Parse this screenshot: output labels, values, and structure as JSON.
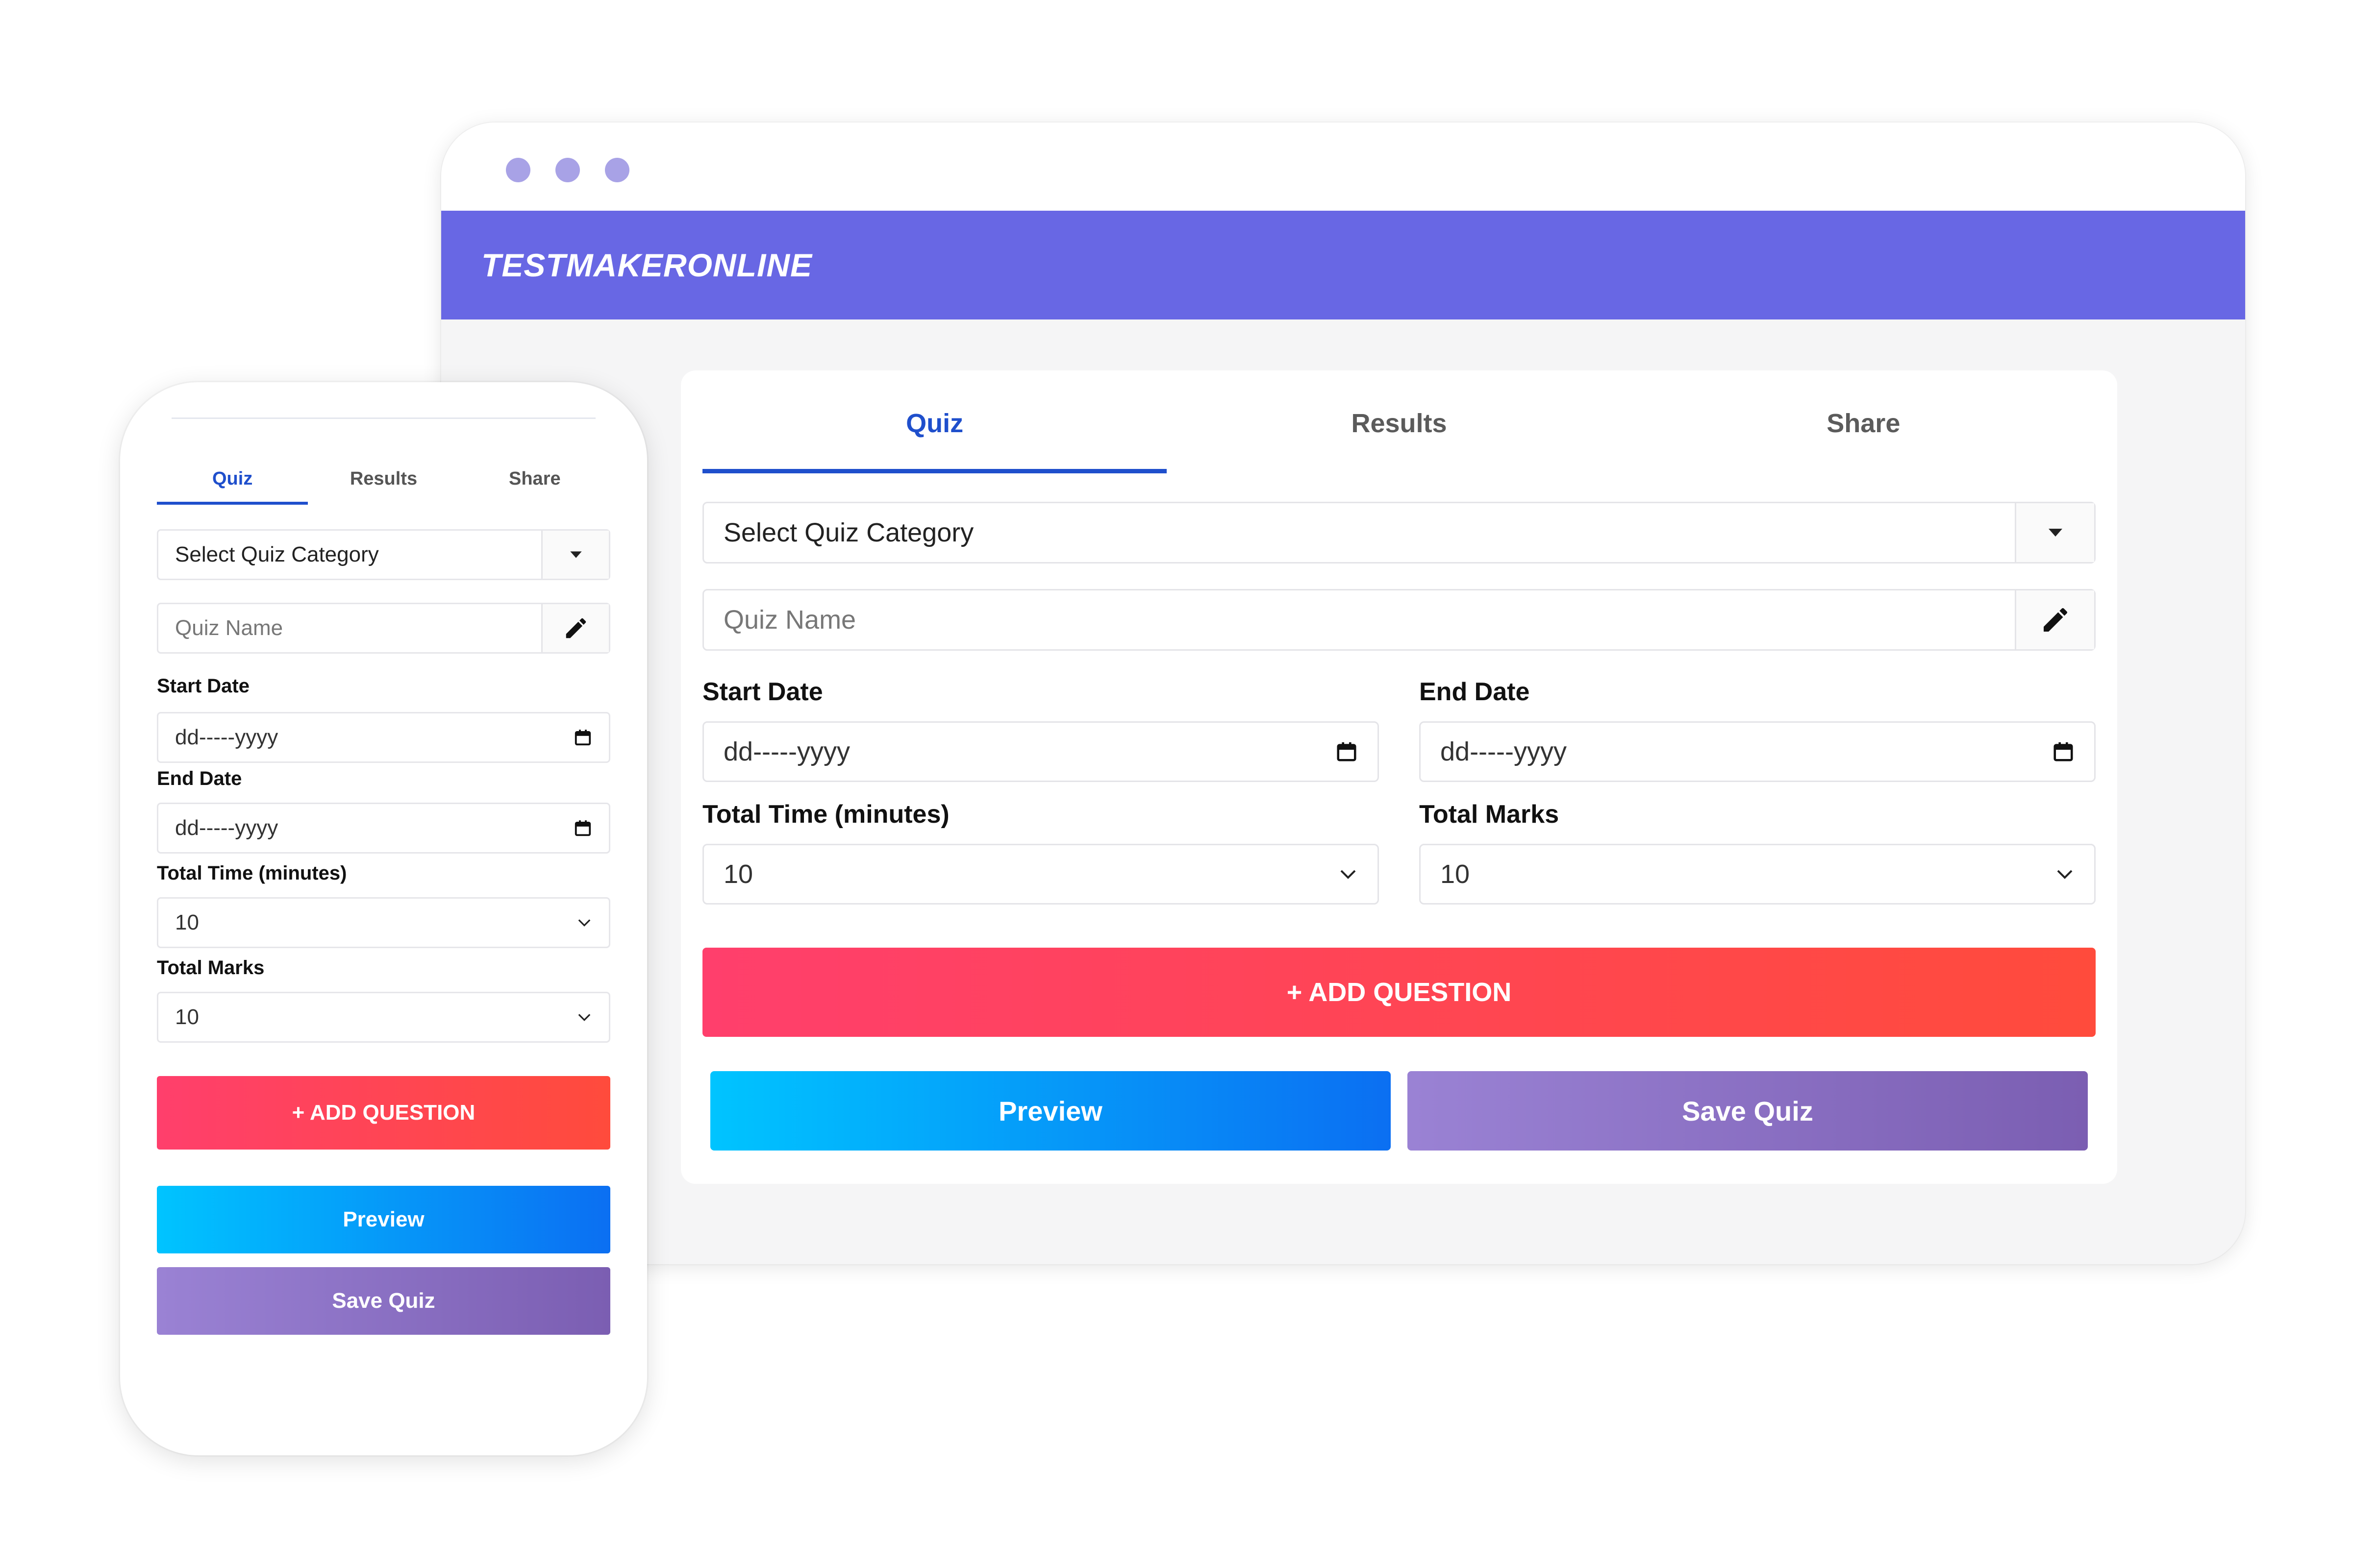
{
  "app": {
    "brand": "TESTMAKERONLINE"
  },
  "tabs": [
    {
      "label": "Quiz",
      "active": true
    },
    {
      "label": "Results",
      "active": false
    },
    {
      "label": "Share",
      "active": false
    }
  ],
  "form": {
    "category_select": "Select Quiz Category",
    "quiz_name_placeholder": "Quiz Name",
    "start_date_label": "Start Date",
    "start_date_value": "dd-----yyyy",
    "end_date_label": "End Date",
    "end_date_value": "dd-----yyyy",
    "total_time_label": "Total Time (minutes)",
    "total_time_value": "10",
    "total_marks_label": "Total Marks",
    "total_marks_value": "10"
  },
  "actions": {
    "add_question": "+ ADD QUESTION",
    "preview": "Preview",
    "save": "Save Quiz"
  },
  "colors": {
    "brand_bar": "#6867e4",
    "tab_active": "#1f4fcc",
    "add_gradient": [
      "#ff3f6c",
      "#ff4b3c"
    ],
    "preview_gradient": [
      "#00c4ff",
      "#0b6ff2"
    ],
    "save_gradient": [
      "#9a82d4",
      "#7b5eb2"
    ]
  },
  "icons": {
    "select_caret": "caret-down-icon",
    "edit": "pencil-icon",
    "date": "calendar-icon",
    "dropdown": "chevron-down-icon"
  }
}
